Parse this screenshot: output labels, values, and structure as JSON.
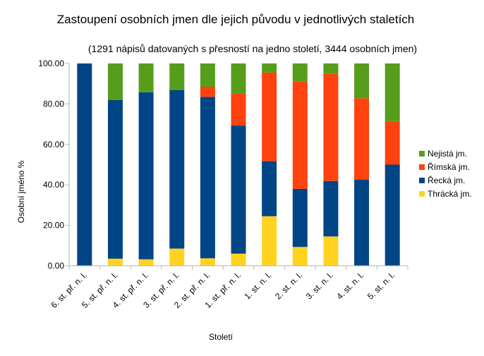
{
  "chart_data": {
    "type": "bar",
    "stacked": true,
    "title": "Zastoupení osobních jmen dle jejich původu v jednotlivých staletích",
    "subtitle": "(1291 nápisů datovaných s přesností na jedno století, 3444 osobních jmen)",
    "xlabel": "Století",
    "ylabel": "Osobní jméno %",
    "ylim": [
      0,
      100
    ],
    "yticks": [
      "0.00",
      "20.00",
      "40.00",
      "60.00",
      "80.00",
      "100.00"
    ],
    "grid": false,
    "legend_position": "right",
    "categories": [
      "6. st. př. n. l.",
      "5. st. př. n. l.",
      "4. st. př. n. l.",
      "3. st. př. n. l.",
      "2. st. př. n. l.",
      "1. st. př. n. l.",
      "1. st. n. l.",
      "2. st. n. l.",
      "3. st. n. l.",
      "4. st. n. l.",
      "5. st. n. l."
    ],
    "series": [
      {
        "name": "Thrácká jm.",
        "color": "#ffd320",
        "values": [
          0,
          3.5,
          3.2,
          8.5,
          3.7,
          6.0,
          24.5,
          9.3,
          14.5,
          0,
          0
        ]
      },
      {
        "name": "Řecká jm.",
        "color": "#004586",
        "values": [
          100,
          78.5,
          82.6,
          78.4,
          79.8,
          63.3,
          27.2,
          28.7,
          27.4,
          42.5,
          50.0
        ]
      },
      {
        "name": "Římská jm.",
        "color": "#ff420e",
        "values": [
          0,
          0,
          0,
          0,
          5.0,
          16.0,
          43.8,
          53.0,
          53.0,
          40.3,
          21.5
        ]
      },
      {
        "name": "Nejistá jm.",
        "color": "#579d1c",
        "values": [
          0,
          18.0,
          14.2,
          13.1,
          11.5,
          14.7,
          4.5,
          9.0,
          5.1,
          17.2,
          28.5
        ]
      }
    ],
    "legend_order": [
      "Nejistá jm.",
      "Římská jm.",
      "Řecká jm.",
      "Thrácká jm."
    ]
  }
}
